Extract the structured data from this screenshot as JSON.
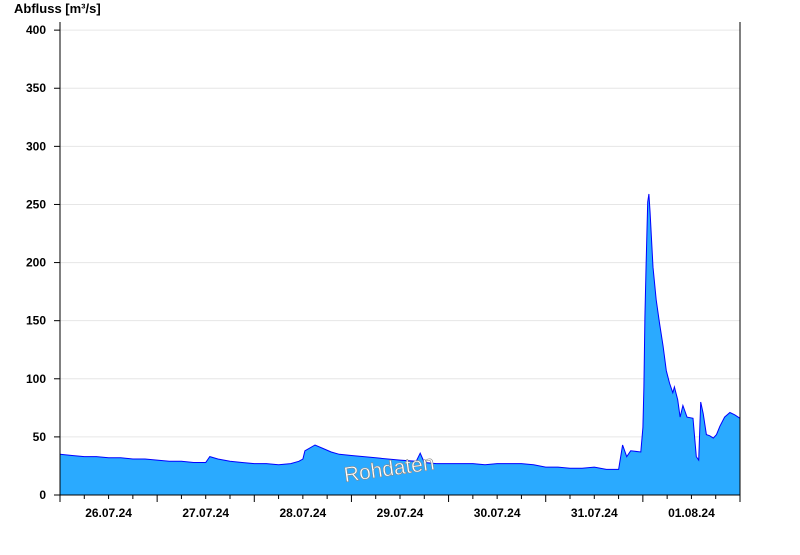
{
  "chart_data": {
    "type": "area",
    "title": "",
    "ylabel": "Abfluss [m³/s]",
    "xlabel": "",
    "ylim": [
      0,
      407
    ],
    "yticks": [
      0,
      50,
      100,
      150,
      200,
      250,
      300,
      350,
      400
    ],
    "xticks": [
      "26.07.24",
      "27.07.24",
      "28.07.24",
      "29.07.24",
      "30.07.24",
      "31.07.24",
      "01.08.24"
    ],
    "xrange": [
      "2024-07-26 00:00",
      "2024-08-02 00:00"
    ],
    "grid": true,
    "watermark": "Rohdaten",
    "colors": {
      "fill": "#2aaaff",
      "line": "#0000ff",
      "grid": "#e6e6e6",
      "day_lines": "#1a5a8a"
    },
    "series": [
      {
        "points": [
          [
            "2024-07-26 00:00",
            35
          ],
          [
            "2024-07-26 03:00",
            34
          ],
          [
            "2024-07-26 06:00",
            33
          ],
          [
            "2024-07-26 09:00",
            33
          ],
          [
            "2024-07-26 12:00",
            32
          ],
          [
            "2024-07-26 15:00",
            32
          ],
          [
            "2024-07-26 18:00",
            31
          ],
          [
            "2024-07-26 21:00",
            31
          ],
          [
            "2024-07-27 00:00",
            30
          ],
          [
            "2024-07-27 03:00",
            29
          ],
          [
            "2024-07-27 06:00",
            29
          ],
          [
            "2024-07-27 09:00",
            28
          ],
          [
            "2024-07-27 12:00",
            28
          ],
          [
            "2024-07-27 13:00",
            33
          ],
          [
            "2024-07-27 15:00",
            31
          ],
          [
            "2024-07-27 18:00",
            29
          ],
          [
            "2024-07-27 21:00",
            28
          ],
          [
            "2024-07-28 00:00",
            27
          ],
          [
            "2024-07-28 03:00",
            27
          ],
          [
            "2024-07-28 06:00",
            26
          ],
          [
            "2024-07-28 09:00",
            27
          ],
          [
            "2024-07-28 11:00",
            29
          ],
          [
            "2024-07-28 12:00",
            31
          ],
          [
            "2024-07-28 12:30",
            38
          ],
          [
            "2024-07-28 15:00",
            43
          ],
          [
            "2024-07-28 17:00",
            40
          ],
          [
            "2024-07-28 19:00",
            37
          ],
          [
            "2024-07-28 21:00",
            35
          ],
          [
            "2024-07-29 00:00",
            34
          ],
          [
            "2024-07-29 03:00",
            33
          ],
          [
            "2024-07-29 06:00",
            32
          ],
          [
            "2024-07-29 09:00",
            31
          ],
          [
            "2024-07-29 12:00",
            30
          ],
          [
            "2024-07-29 16:00",
            29
          ],
          [
            "2024-07-29 17:00",
            36
          ],
          [
            "2024-07-29 18:00",
            28
          ],
          [
            "2024-07-29 21:00",
            27
          ],
          [
            "2024-07-30 00:00",
            27
          ],
          [
            "2024-07-30 03:00",
            27
          ],
          [
            "2024-07-30 06:00",
            27
          ],
          [
            "2024-07-30 09:00",
            26
          ],
          [
            "2024-07-30 12:00",
            27
          ],
          [
            "2024-07-30 15:00",
            27
          ],
          [
            "2024-07-30 18:00",
            27
          ],
          [
            "2024-07-30 21:00",
            26
          ],
          [
            "2024-07-31 00:00",
            24
          ],
          [
            "2024-07-31 03:00",
            24
          ],
          [
            "2024-07-31 06:00",
            23
          ],
          [
            "2024-07-31 09:00",
            23
          ],
          [
            "2024-07-31 12:00",
            24
          ],
          [
            "2024-07-31 15:00",
            22
          ],
          [
            "2024-07-31 18:00",
            22
          ],
          [
            "2024-07-31 19:00",
            43
          ],
          [
            "2024-07-31 20:00",
            33
          ],
          [
            "2024-07-31 21:00",
            38
          ],
          [
            "2024-07-31 23:30",
            37
          ],
          [
            "2024-08-01 00:00",
            58
          ],
          [
            "2024-08-01 00:15",
            93
          ],
          [
            "2024-08-01 00:30",
            153
          ],
          [
            "2024-08-01 00:48",
            198
          ],
          [
            "2024-08-01 01:12",
            252
          ],
          [
            "2024-08-01 01:30",
            259
          ],
          [
            "2024-08-01 01:48",
            243
          ],
          [
            "2024-08-01 02:30",
            196
          ],
          [
            "2024-08-01 03:18",
            168
          ],
          [
            "2024-08-01 04:06",
            148
          ],
          [
            "2024-08-01 05:00",
            128
          ],
          [
            "2024-08-01 05:48",
            107
          ],
          [
            "2024-08-01 06:36",
            96
          ],
          [
            "2024-08-01 07:24",
            88
          ],
          [
            "2024-08-01 07:48",
            93
          ],
          [
            "2024-08-01 08:36",
            82
          ],
          [
            "2024-08-01 09:12",
            67
          ],
          [
            "2024-08-01 09:54",
            77
          ],
          [
            "2024-08-01 10:54",
            67
          ],
          [
            "2024-08-01 12:24",
            66
          ],
          [
            "2024-08-01 13:12",
            33
          ],
          [
            "2024-08-01 13:48",
            30
          ],
          [
            "2024-08-01 14:18",
            80
          ],
          [
            "2024-08-01 14:54",
            70
          ],
          [
            "2024-08-01 15:42",
            52
          ],
          [
            "2024-08-01 16:30",
            51
          ],
          [
            "2024-08-01 17:24",
            49
          ],
          [
            "2024-08-01 18:12",
            52
          ],
          [
            "2024-08-01 19:00",
            59
          ],
          [
            "2024-08-01 20:12",
            67
          ],
          [
            "2024-08-01 21:30",
            71
          ],
          [
            "2024-08-01 22:42",
            69
          ],
          [
            "2024-08-02 00:00",
            66
          ]
        ]
      }
    ]
  }
}
